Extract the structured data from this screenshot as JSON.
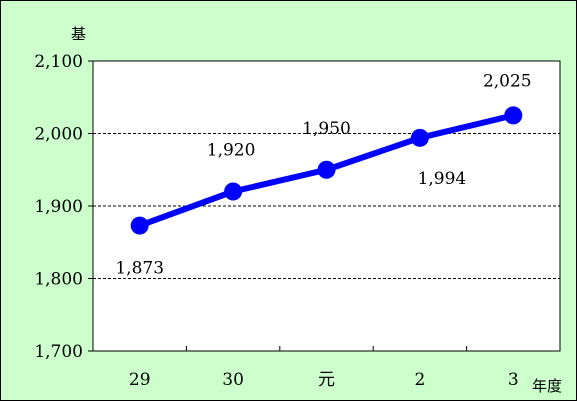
{
  "chart_data": {
    "type": "line",
    "categories": [
      "29",
      "30",
      "元",
      "2",
      "3"
    ],
    "series": [
      {
        "values": [
          1873,
          1920,
          1950,
          1994,
          2025
        ]
      }
    ],
    "data_labels": [
      "1,873",
      "1,920",
      "1,950",
      "1,994",
      "2,025"
    ],
    "y_tick_labels": [
      "1,700",
      "1,800",
      "1,900",
      "2,000",
      "2,100"
    ],
    "y_ticks": [
      1700,
      1800,
      1900,
      2000,
      2100
    ],
    "ylim": [
      1700,
      2100
    ],
    "yunit": "基",
    "xunit": "年度",
    "grid": true,
    "colors": {
      "line": "#0000ff",
      "background": "#ccffcc",
      "plot": "#ffffff"
    }
  }
}
